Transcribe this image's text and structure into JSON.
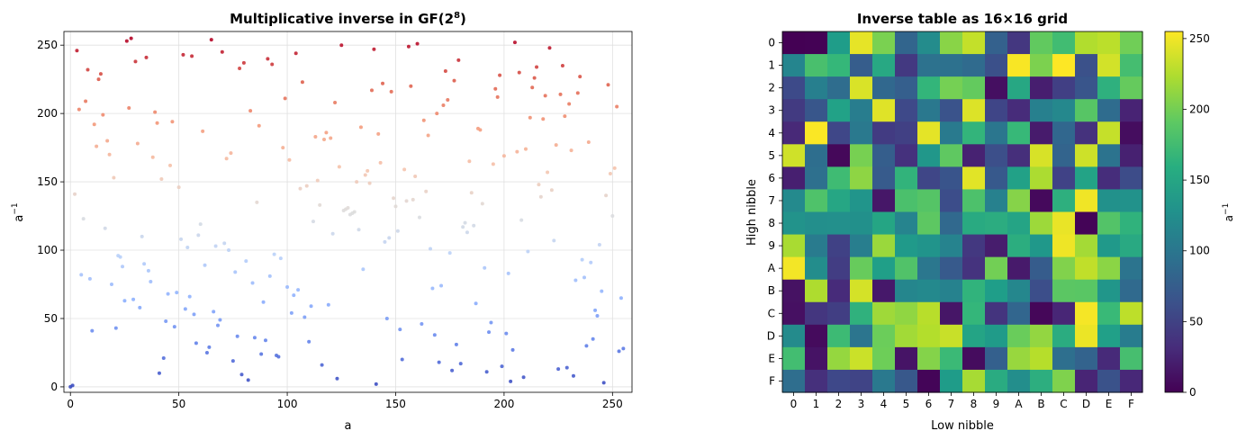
{
  "chart_data": [
    {
      "type": "scatter",
      "title_main": "Multiplicative inverse in GF(2",
      "title_sup": "8",
      "title_end": ")",
      "xlabel": "a",
      "ylabel": "a",
      "ylabel_sup": "−1",
      "xlim": [
        -3,
        259
      ],
      "ylim": [
        -4,
        260
      ],
      "xticks": [
        0,
        50,
        100,
        150,
        200,
        250
      ],
      "yticks": [
        0,
        50,
        100,
        150,
        200,
        250
      ],
      "grid": true,
      "colormap": "coolwarm",
      "color_by": "y",
      "note": "x = a (0..255), y = inverse of a in GF(2^8) with AES polynomial 0x11B; inverse(0) = 0",
      "x": [
        0,
        1,
        2,
        3,
        4,
        5,
        6,
        7,
        8,
        9,
        10,
        11,
        12,
        13,
        14,
        15,
        16,
        17,
        18,
        19,
        20,
        21,
        22,
        23,
        24,
        25,
        26,
        27,
        28,
        29,
        30,
        31,
        32,
        33,
        34,
        35,
        36,
        37,
        38,
        39,
        40,
        41,
        42,
        43,
        44,
        45,
        46,
        47,
        48,
        49,
        50,
        51,
        52,
        53,
        54,
        55,
        56,
        57,
        58,
        59,
        60,
        61,
        62,
        63,
        64,
        65,
        66,
        67,
        68,
        69,
        70,
        71,
        72,
        73,
        74,
        75,
        76,
        77,
        78,
        79,
        80,
        81,
        82,
        83,
        84,
        85,
        86,
        87,
        88,
        89,
        90,
        91,
        92,
        93,
        94,
        95,
        96,
        97,
        98,
        99,
        100,
        101,
        102,
        103,
        104,
        105,
        106,
        107,
        108,
        109,
        110,
        111,
        112,
        113,
        114,
        115,
        116,
        117,
        118,
        119,
        120,
        121,
        122,
        123,
        124,
        125,
        126,
        127,
        128,
        129,
        130,
        131,
        132,
        133,
        134,
        135,
        136,
        137,
        138,
        139,
        140,
        141,
        142,
        143,
        144,
        145,
        146,
        147,
        148,
        149,
        150,
        151,
        152,
        153,
        154,
        155,
        156,
        157,
        158,
        159,
        160,
        161,
        162,
        163,
        164,
        165,
        166,
        167,
        168,
        169,
        170,
        171,
        172,
        173,
        174,
        175,
        176,
        177,
        178,
        179,
        180,
        181,
        182,
        183,
        184,
        185,
        186,
        187,
        188,
        189,
        190,
        191,
        192,
        193,
        194,
        195,
        196,
        197,
        198,
        199,
        200,
        201,
        202,
        203,
        204,
        205,
        206,
        207,
        208,
        209,
        210,
        211,
        212,
        213,
        214,
        215,
        216,
        217,
        218,
        219,
        220,
        221,
        222,
        223,
        224,
        225,
        226,
        227,
        228,
        229,
        230,
        231,
        232,
        233,
        234,
        235,
        236,
        237,
        238,
        239,
        240,
        241,
        242,
        243,
        244,
        245,
        246,
        247,
        248,
        249,
        250,
        251,
        252,
        253,
        254,
        255
      ],
      "y": [
        0,
        1,
        141,
        246,
        203,
        82,
        123,
        209,
        232,
        79,
        41,
        192,
        176,
        225,
        229,
        199,
        116,
        180,
        170,
        75,
        153,
        43,
        96,
        95,
        88,
        63,
        253,
        204,
        255,
        64,
        238,
        178,
        58,
        110,
        90,
        241,
        85,
        77,
        168,
        201,
        193,
        10,
        152,
        21,
        48,
        68,
        162,
        194,
        44,
        69,
        146,
        108,
        243,
        57,
        102,
        66,
        242,
        53,
        32,
        111,
        119,
        187,
        89,
        25,
        29,
        254,
        55,
        103,
        45,
        49,
        245,
        105,
        167,
        100,
        171,
        19,
        84,
        37,
        233,
        9,
        237,
        92,
        5,
        202,
        76,
        36,
        135,
        191,
        24,
        62,
        34,
        240,
        81,
        236,
        97,
        23,
        22,
        94,
        175,
        211,
        73,
        166,
        54,
        67,
        244,
        71,
        145,
        223,
        51,
        147,
        33,
        59,
        121,
        183,
        151,
        133,
        16,
        181,
        186,
        60,
        182,
        112,
        208,
        6,
        161,
        250,
        129,
        130,
        131,
        126,
        127,
        128,
        150,
        115,
        190,
        86,
        155,
        158,
        149,
        217,
        247,
        2,
        185,
        164,
        222,
        106,
        50,
        109,
        216,
        138,
        132,
        114,
        42,
        20,
        159,
        136,
        249,
        220,
        137,
        154,
        251,
        124,
        46,
        195,
        143,
        184,
        101,
        72,
        38,
        200,
        18,
        74,
        206,
        231,
        210,
        98,
        12,
        224,
        31,
        239,
        17,
        117,
        120,
        113,
        165,
        142,
        118,
        61,
        189,
        188,
        134,
        87,
        11,
        40,
        47,
        163,
        218,
        212,
        228,
        15,
        169,
        39,
        83,
        4,
        27,
        252,
        172,
        230,
        122,
        7,
        174,
        99,
        197,
        219,
        226,
        234,
        148,
        139,
        196,
        213,
        157,
        248,
        144,
        107,
        177,
        13,
        214,
        235,
        198,
        14,
        207,
        173,
        8,
        78,
        215,
        227,
        93,
        80,
        30,
        179,
        91,
        35,
        56,
        52,
        104,
        70,
        3,
        140,
        221,
        156,
        125,
        160,
        205,
        26,
        65,
        28
      ]
    },
    {
      "type": "heatmap",
      "title": "Inverse table as 16×16 grid",
      "xlabel": "Low nibble",
      "ylabel": "High nibble",
      "xticklabels": [
        "0",
        "1",
        "2",
        "3",
        "4",
        "5",
        "6",
        "7",
        "8",
        "9",
        "A",
        "B",
        "C",
        "D",
        "E",
        "F"
      ],
      "yticklabels": [
        "0",
        "1",
        "2",
        "3",
        "4",
        "5",
        "6",
        "7",
        "8",
        "9",
        "A",
        "B",
        "C",
        "D",
        "E",
        "F"
      ],
      "colormap": "viridis",
      "vmin": 0,
      "vmax": 255,
      "note": "cell (row r, col c) = y[16*r + c] of the first chart"
    }
  ],
  "colorbar": {
    "label": "a",
    "label_sup": "−1",
    "ticks": [
      0,
      50,
      100,
      150,
      200,
      250
    ]
  }
}
